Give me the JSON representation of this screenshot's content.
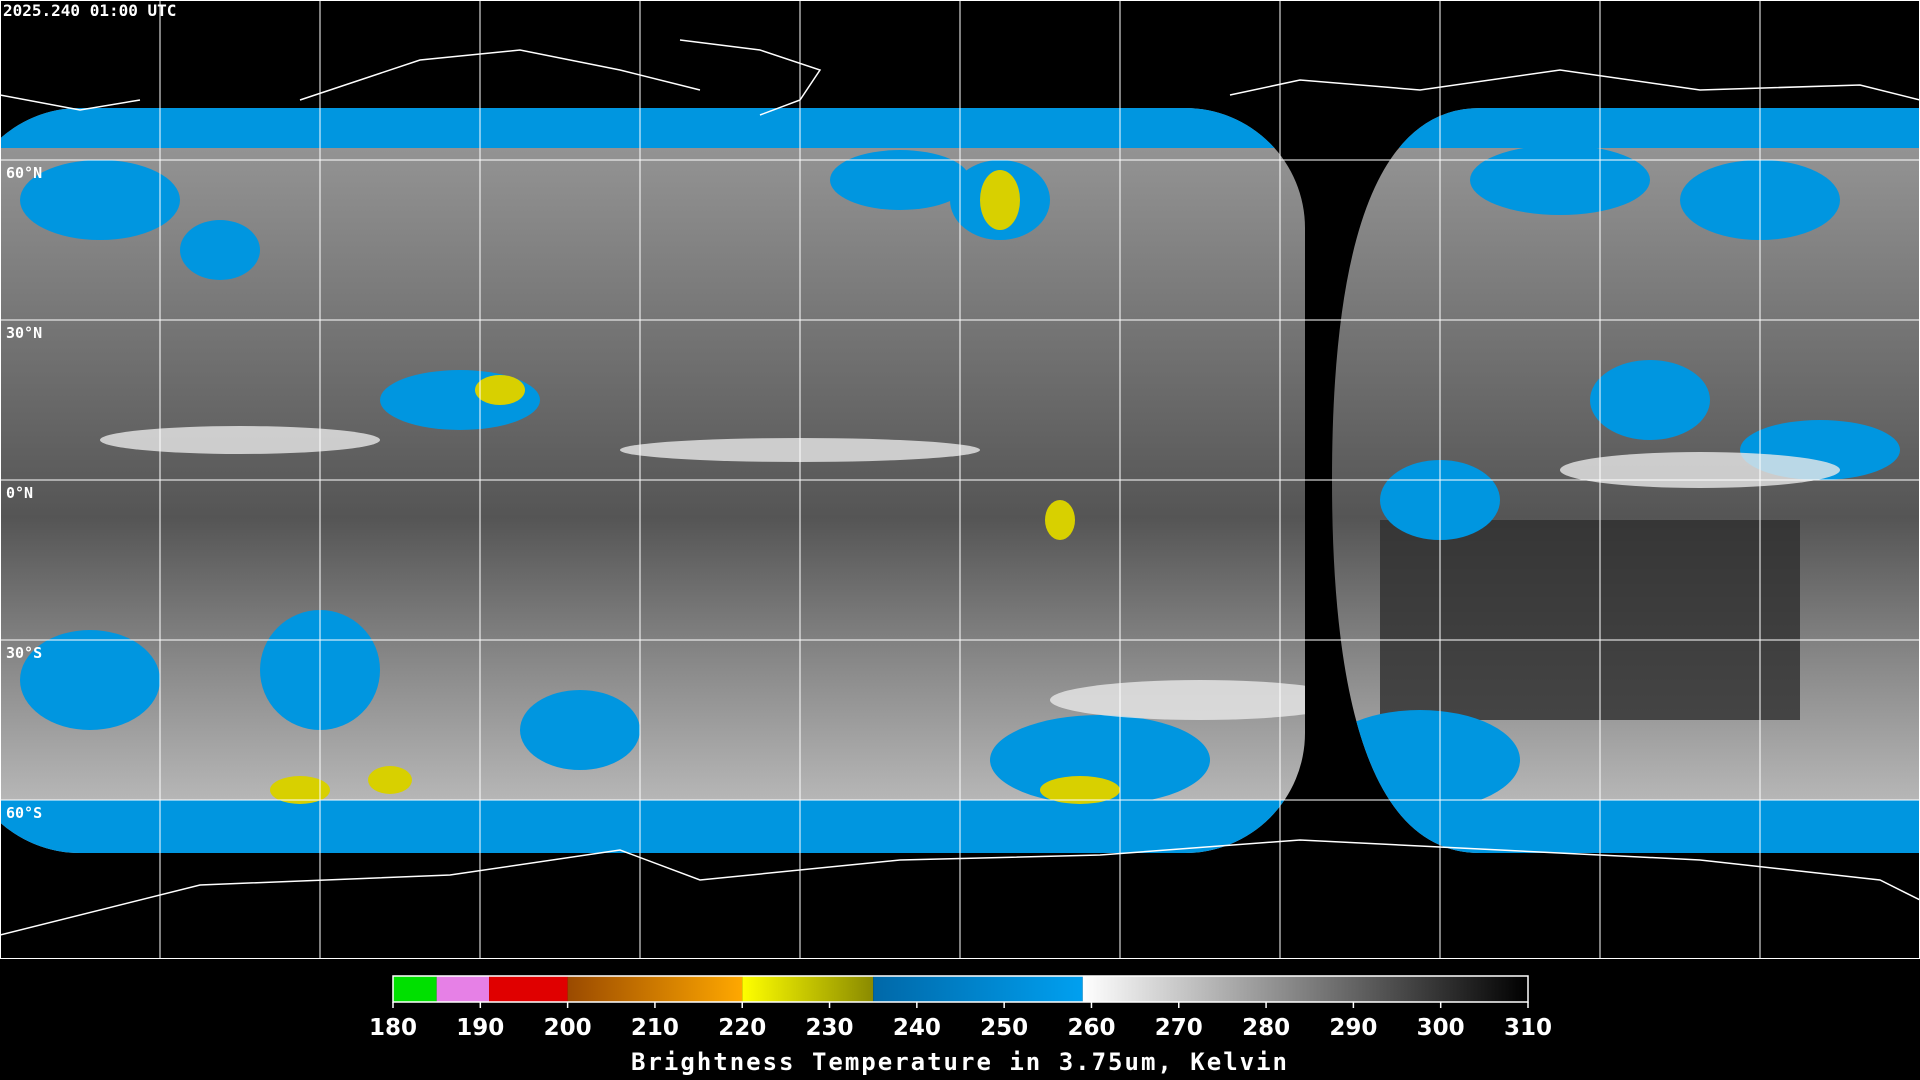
{
  "map": {
    "title": "2025.240 01:00 UTC",
    "lat_labels": [
      "60°N",
      "30°N",
      "0°N",
      "30°S",
      "60°S"
    ]
  },
  "colorbar": {
    "lim": [
      180,
      310
    ],
    "ticks": [
      180,
      190,
      200,
      210,
      220,
      230,
      240,
      250,
      260,
      270,
      280,
      290,
      300,
      310
    ],
    "label": "Brightness Temperature in 3.75um, Kelvin",
    "segments": [
      {
        "from": 180,
        "to": 185,
        "colors": [
          "#00e000",
          "#00e000"
        ]
      },
      {
        "from": 185,
        "to": 191,
        "colors": [
          "#e680e6",
          "#e680e6"
        ]
      },
      {
        "from": 191,
        "to": 200,
        "colors": [
          "#e00000",
          "#e00000"
        ]
      },
      {
        "from": 200,
        "to": 220,
        "colors": [
          "#9a4a00",
          "#ffa800"
        ]
      },
      {
        "from": 220,
        "to": 235,
        "colors": [
          "#ffff00",
          "#8a8a00"
        ]
      },
      {
        "from": 235,
        "to": 259,
        "colors": [
          "#0068a8",
          "#00a0f0"
        ]
      },
      {
        "from": 259,
        "to": 310,
        "colors": [
          "#ffffff",
          "#000000"
        ]
      }
    ]
  }
}
